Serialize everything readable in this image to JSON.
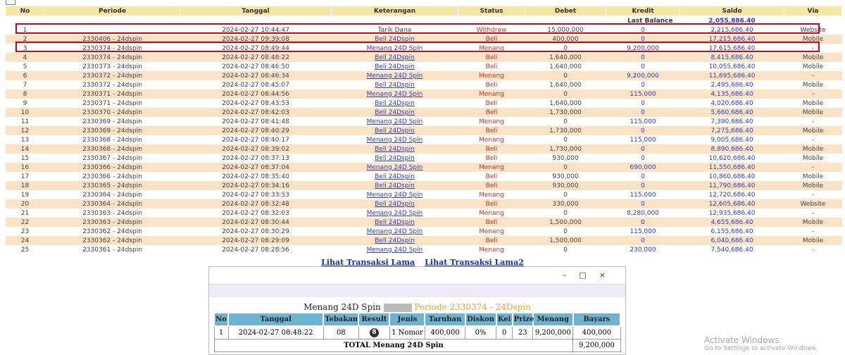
{
  "table": {
    "headers": [
      "No",
      "Periode",
      "Tanggal",
      "Keterangan",
      "Status",
      "Debet",
      "Kredit",
      "Saldo",
      "Via"
    ],
    "last_balance": {
      "label": "Last Balance",
      "value": "2,055,886.40"
    },
    "rows": [
      [
        "1",
        null,
        "2024-02-27 10:44:47",
        "Tarik Dana",
        "Withdraw",
        "15,000,000",
        "0",
        "2,215,686.40",
        "Website"
      ],
      [
        "2",
        "2330406 - 24dspin",
        "2024-02-27 09:39:08",
        "Beli 24Dspin",
        "Beli",
        "400,000",
        "0",
        "17,215,686.40",
        "Mobile"
      ],
      [
        "3",
        "2330374 - 24dspin",
        "2024-02-27 08:49:44",
        "Menang 24D Spin",
        "Menang",
        "0",
        "9,200,000",
        "17,615,686.40",
        "-"
      ],
      [
        "4",
        "2330374 - 24dspin",
        "2024-02-27 08:48:22",
        "Beli 24Dspin",
        "Beli",
        "1,640,000",
        "0",
        "8,415,686.40",
        "Mobile"
      ],
      [
        "5",
        "2330373 - 24dspin",
        "2024-02-27 08:46:50",
        "Beli 24Dspin",
        "Beli",
        "1,640,000",
        "0",
        "10,055,686.40",
        "Mobile"
      ],
      [
        "6",
        "2330372 - 24dspin",
        "2024-02-27 08:46:34",
        "Menang 24D Spin",
        "Menang",
        "0",
        "9,200,000",
        "11,695,686.40",
        "-"
      ],
      [
        "7",
        "2330372 - 24dspin",
        "2024-02-27 08:45:07",
        "Beli 24Dspin",
        "Beli",
        "1,640,000",
        "0",
        "2,495,686.40",
        "Mobile"
      ],
      [
        "8",
        "2330371 - 24dspin",
        "2024-02-27 08:44:56",
        "Menang 24D Spin",
        "Menang",
        "0",
        "115,000",
        "4,135,686.40",
        "-"
      ],
      [
        "9",
        "2330371 - 24dspin",
        "2024-02-27 08:43:53",
        "Beli 24Dspin",
        "Beli",
        "1,640,000",
        "0",
        "4,020,686.40",
        "Mobile"
      ],
      [
        "10",
        "2330370 - 24dspin",
        "2024-02-27 08:42:03",
        "Beli 24Dspin",
        "Beli",
        "1,730,000",
        "0",
        "5,660,686.40",
        "Mobile"
      ],
      [
        "11",
        "2330369 - 24dspin",
        "2024-02-27 08:41:48",
        "Menang 24D Spin",
        "Menang",
        "0",
        "115,000",
        "7,390,686.40",
        "-"
      ],
      [
        "12",
        "2330369 - 24dspin",
        "2024-02-27 08:40:29",
        "Beli 24Dspin",
        "Beli",
        "1,730,000",
        "0",
        "7,275,686.40",
        "Mobile"
      ],
      [
        "13",
        "2330368 - 24dspin",
        "2024-02-27 08:40:17",
        "Menang 24D Spin",
        "Menang",
        "0",
        "115,000",
        "9,005,686.40",
        "-"
      ],
      [
        "14",
        "2330368 - 24dspin",
        "2024-02-27 08:39:02",
        "Beli 24Dspin",
        "Beli",
        "1,730,000",
        "0",
        "8,890,686.40",
        "Mobile"
      ],
      [
        "15",
        "2330367 - 24dspin",
        "2024-02-27 08:37:13",
        "Beli 24Dspin",
        "Beli",
        "930,000",
        "0",
        "10,620,686.40",
        "Mobile"
      ],
      [
        "16",
        "2330366 - 24dspin",
        "2024-02-27 08:37:04",
        "Menang 24D Spin",
        "Menang",
        "0",
        "690,000",
        "11,550,686.40",
        "-"
      ],
      [
        "17",
        "2330366 - 24dspin",
        "2024-02-27 08:35:40",
        "Beli 24Dspin",
        "Beli",
        "930,000",
        "0",
        "10,860,686.40",
        "Mobile"
      ],
      [
        "18",
        "2330365 - 24dspin",
        "2024-02-27 08:34:16",
        "Beli 24Dspin",
        "Beli",
        "930,000",
        "0",
        "11,790,686.40",
        "Mobile"
      ],
      [
        "19",
        "2330364 - 24dspin",
        "2024-02-27 08:33:53",
        "Menang 24D Spin",
        "Menang",
        "0",
        "115,000",
        "12,720,686.40",
        "-"
      ],
      [
        "20",
        "2330364 - 24dspin",
        "2024-02-27 08:32:48",
        "Beli 24Dspin",
        "Beli",
        "330,000",
        "0",
        "12,605,686.40",
        "Website"
      ],
      [
        "21",
        "2330363 - 24dspin",
        "2024-02-27 08:32:03",
        "Menang 24D Spin",
        "Menang",
        "0",
        "8,280,000",
        "12,935,686.40",
        "-"
      ],
      [
        "22",
        "2330363 - 24dspin",
        "2024-02-27 08:30:44",
        "Beli 24Dspin",
        "Beli",
        "1,500,000",
        "0",
        "4,655,686.40",
        "Mobile"
      ],
      [
        "23",
        "2330362 - 24dspin",
        "2024-02-27 08:30:29",
        "Menang 24D Spin",
        "Menang",
        "0",
        "115,000",
        "6,155,686.40",
        "-"
      ],
      [
        "24",
        "2330362 - 24dspin",
        "2024-02-27 08:29:09",
        "Beli 24Dspin",
        "Beli",
        "1,500,000",
        "0",
        "6,040,686.40",
        "Mobile"
      ],
      [
        "25",
        "2330361 - 24dspin",
        "2024-02-27 08:28:56",
        "Menang 24D Spin",
        "Menang",
        "0",
        "230,000",
        "7,540,686.40",
        "-"
      ]
    ]
  },
  "links": [
    "Lihat Transaksi Lama",
    "Lihat Transaksi Lama2"
  ],
  "popup": {
    "heading": "Menang 24D Spin",
    "periode": "Periode 2330374 - 24Dspin",
    "headers": [
      "No",
      "Tanggal",
      "Tebakan",
      "Result",
      "Jenis",
      "Taruhan",
      "Diskon",
      "Kei",
      "Prize",
      "Menang",
      "Bayars"
    ],
    "rows": [
      [
        "1",
        "2024-02-27 08:48:22",
        "08",
        "8",
        "1 Nomor",
        "400,000",
        "0%",
        "0",
        "23",
        "9,200,000",
        "400,000"
      ]
    ],
    "total_label": "TOTAL  Menang 24D Spin",
    "total_value": "9,200,000"
  },
  "watermark": {
    "title": "Activate Windows",
    "subtitle": "Go to Settings to activate Windows."
  }
}
